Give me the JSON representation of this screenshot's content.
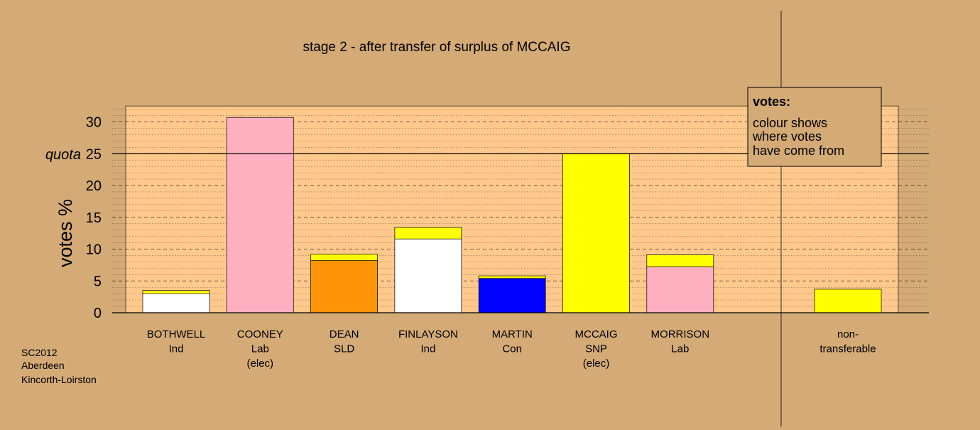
{
  "colors": {
    "background": "#D4AA76",
    "plot_bg": "#FFC88C",
    "legend_bg": "#D4AA76",
    "Ind": "#FFFFFF",
    "Lab": "#FFB0C0",
    "SLD": "#FF9408",
    "Con": "#0000FF",
    "SNP": "#FFFF00"
  },
  "chart_data": {
    "type": "bar",
    "stacked": true,
    "title": "stage 2 - after transfer of surplus of MCCAIG",
    "ylabel": "votes %",
    "ylim": [
      0,
      32.5
    ],
    "yticks": [
      0,
      5,
      10,
      15,
      20,
      25,
      30
    ],
    "quota": {
      "label": "quota",
      "value": 25
    },
    "grid": "dashed at major ticks, dotted at minor ticks",
    "bars": [
      {
        "label": [
          "BOTHWELL",
          "Ind"
        ],
        "segments": [
          {
            "from": "Ind",
            "value": 3.0
          },
          {
            "from": "SNP",
            "value": 0.5
          }
        ]
      },
      {
        "label": [
          "COONEY",
          "Lab",
          "(elec)"
        ],
        "segments": [
          {
            "from": "Lab",
            "value": 30.7
          }
        ]
      },
      {
        "label": [
          "DEAN",
          "SLD"
        ],
        "segments": [
          {
            "from": "SLD",
            "value": 8.2
          },
          {
            "from": "SNP",
            "value": 1.0
          }
        ]
      },
      {
        "label": [
          "FINLAYSON",
          "Ind"
        ],
        "segments": [
          {
            "from": "Ind",
            "value": 11.6
          },
          {
            "from": "SNP",
            "value": 1.8
          }
        ]
      },
      {
        "label": [
          "MARTIN",
          "Con"
        ],
        "segments": [
          {
            "from": "Con",
            "value": 5.4
          },
          {
            "from": "SNP",
            "value": 0.4
          }
        ]
      },
      {
        "label": [
          "MCCAIG",
          "SNP",
          "(elec)"
        ],
        "segments": [
          {
            "from": "SNP",
            "value": 25.0
          }
        ]
      },
      {
        "label": [
          "MORRISON",
          "Lab"
        ],
        "segments": [
          {
            "from": "Lab",
            "value": 7.2
          },
          {
            "from": "SNP",
            "value": 1.9
          }
        ]
      }
    ],
    "nontransferable": {
      "label": [
        "non-",
        "transferable"
      ],
      "segments": [
        {
          "from": "SNP",
          "value": 3.7
        }
      ]
    },
    "legend": {
      "placement": "top-right",
      "title": "votes:",
      "lines": [
        "colour shows",
        "where votes",
        "have come from"
      ]
    }
  },
  "footer": {
    "lines": [
      "SC2012",
      "Aberdeen",
      "Kincorth-Loirston"
    ]
  }
}
